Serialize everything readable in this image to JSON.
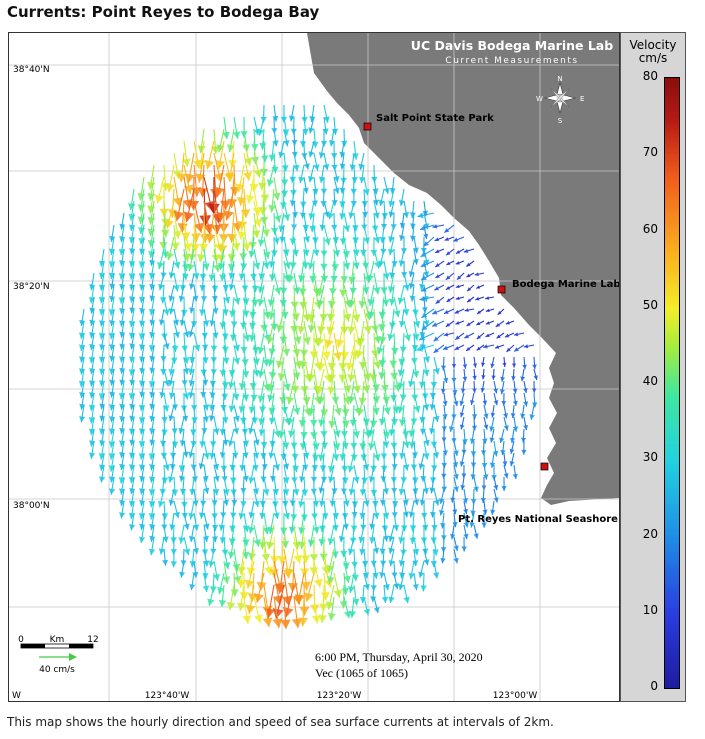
{
  "title": "Currents: Point Reyes to Bodega Bay",
  "map": {
    "header_line1": "UC Davis Bodega Marine Lab",
    "header_line2": "Current Measurements",
    "compass": {
      "n": "N",
      "s": "S",
      "e": "E",
      "w": "W"
    },
    "lat_labels": [
      "38°40'N",
      "38°20'N",
      "38°00'N"
    ],
    "lon_labels": [
      "123°40'W",
      "123°20'W",
      "123°00'W"
    ],
    "corner_label": "W",
    "places": [
      "Salt Point State Park",
      "Bodega Marine Lab",
      "Pt. Reyes National Seashore"
    ],
    "timestamp": "6:00 PM, Thursday, April 30, 2020",
    "vec_count": "Vec (1065 of 1065)",
    "scale": {
      "zero": "0",
      "unit": "Km",
      "max": "12",
      "ref_vector": "40 cm/s"
    }
  },
  "legend": {
    "title_line1": "Velocity",
    "title_line2": "cm/s",
    "ticks": [
      "80",
      "70",
      "60",
      "50",
      "40",
      "30",
      "20",
      "10",
      "0"
    ],
    "range": [
      0,
      80
    ]
  },
  "colors": {
    "land": "#7a7a7a",
    "grid": "#c8c8c8",
    "station": "#cc1111"
  },
  "footnote": "This map shows the hourly direction and speed of sea surface currents at intervals of 2km."
}
